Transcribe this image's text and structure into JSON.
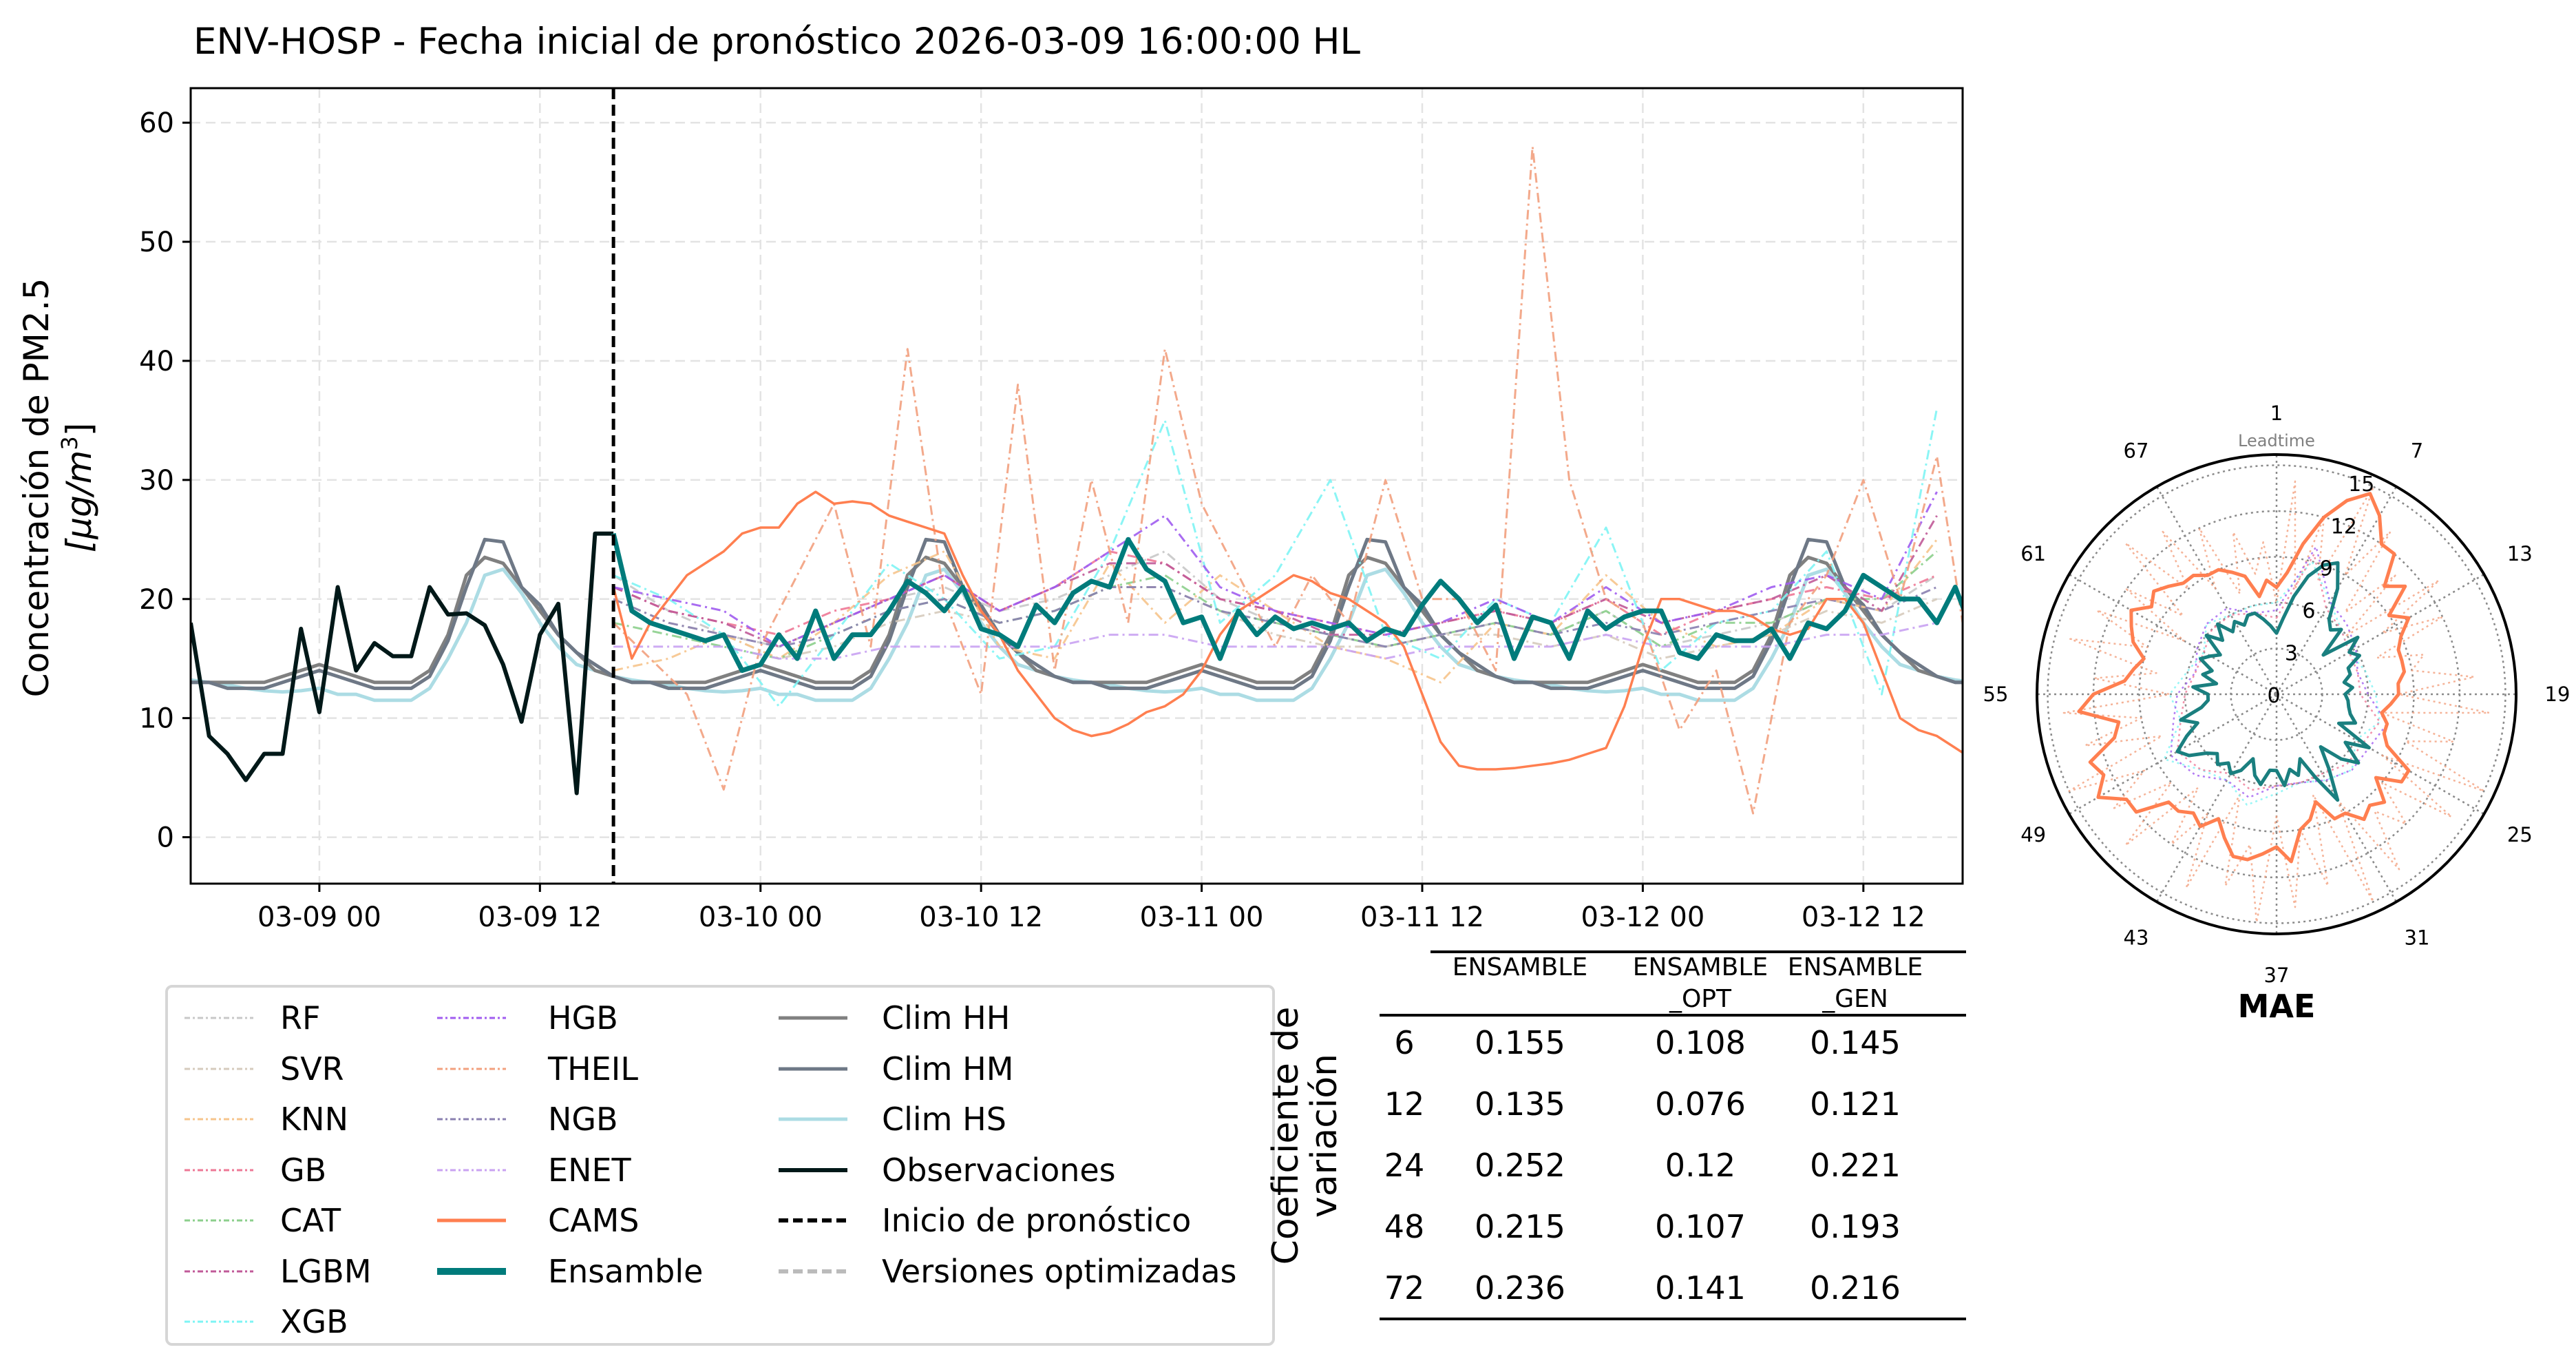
{
  "chart_data": [
    {
      "type": "line",
      "title": "ENV-HOSP - Fecha inicial de pronóstico 2026-03-09 16:00:00 HL",
      "ylabel_line1": "Concentración de PM2.5",
      "ylabel_unit_prefix": "[μg/m",
      "ylabel_unit_sup": "3",
      "ylabel_unit_suffix": "]",
      "x_unit": "hours since 03-09 00",
      "xlim": [
        -7,
        89.4
      ],
      "ylim": [
        -3.9,
        62.9
      ],
      "yticks": [
        0,
        10,
        20,
        30,
        40,
        50,
        60
      ],
      "xticks": [
        {
          "h": 0,
          "label": "03-09 00"
        },
        {
          "h": 12,
          "label": "03-09 12"
        },
        {
          "h": 24,
          "label": "03-10 00"
        },
        {
          "h": 36,
          "label": "03-10 12"
        },
        {
          "h": 48,
          "label": "03-11 00"
        },
        {
          "h": 60,
          "label": "03-11 12"
        },
        {
          "h": 72,
          "label": "03-12 00"
        },
        {
          "h": 84,
          "label": "03-12 12"
        }
      ],
      "grid": true,
      "forecast_start_h": 16,
      "climatology_profiles_by_hour": {
        "Clim HH": [
          14.5,
          14,
          13.5,
          13,
          13,
          13,
          14,
          17,
          22,
          23.5,
          23,
          21,
          19,
          17,
          15.5,
          14,
          13.5,
          13,
          13,
          13,
          13,
          13,
          13.5,
          14
        ],
        "Clim HM": [
          14,
          13.5,
          13,
          12.5,
          12.5,
          12.5,
          13.5,
          16.5,
          21,
          25,
          24.8,
          21,
          19.5,
          17,
          15.5,
          14.5,
          13.5,
          13,
          13,
          12.5,
          12.5,
          12.5,
          13,
          13.5
        ],
        "Clim HS": [
          12.5,
          12,
          12,
          11.5,
          11.5,
          11.5,
          12.5,
          15,
          18,
          22,
          22.5,
          20.5,
          18,
          16,
          14.5,
          14,
          13.5,
          13.2,
          13,
          12.8,
          12.5,
          12.3,
          12.2,
          12.3
        ]
      },
      "observations": {
        "start_h": -7,
        "step_h": 1,
        "values": [
          18,
          8.5,
          7,
          4.8,
          7,
          7,
          17.5,
          10.5,
          21,
          14,
          16.3,
          15.2,
          15.2,
          21,
          18.7,
          18.8,
          17.8,
          14.5,
          9.7,
          17,
          19.6,
          3.7,
          25.5,
          25.5
        ]
      },
      "ensemble": {
        "start_h": 16,
        "step_h": 1,
        "values": [
          25.5,
          19,
          18,
          17.5,
          17,
          16.5,
          17,
          14,
          14.5,
          17,
          15,
          19,
          15,
          17,
          17,
          19,
          21.5,
          20.5,
          19,
          21,
          17.5,
          17,
          16,
          19.5,
          18,
          20.5,
          21.5,
          21,
          25,
          22.5,
          21.5,
          18,
          18.5,
          15,
          19,
          17,
          18.5,
          17.5,
          18,
          17.5,
          18,
          16.5,
          17.5,
          17,
          19.5,
          21.5,
          20,
          18,
          19.5,
          15,
          18.5,
          18,
          15,
          19,
          17.5,
          18.5,
          19,
          19,
          15.5,
          15,
          17,
          16.5,
          16.5,
          17.5,
          15,
          18,
          17.5,
          19,
          22,
          21,
          20,
          20,
          18,
          21,
          17,
          16.5,
          21,
          23,
          23.5
        ]
      },
      "cams": {
        "start_h": 16,
        "step_h": 1,
        "values": [
          21,
          15,
          18,
          20,
          22,
          23,
          24,
          25.5,
          26,
          26,
          28,
          29,
          28,
          28.2,
          28,
          27,
          26.5,
          26,
          25.5,
          22,
          19,
          17,
          14,
          12,
          10,
          9,
          8.5,
          8.8,
          9.5,
          10.5,
          11,
          12,
          14,
          17,
          19,
          20,
          21,
          22,
          21.5,
          20.5,
          20,
          19,
          18,
          16,
          12,
          8,
          6,
          5.7,
          5.7,
          5.8,
          6,
          6.2,
          6.5,
          7,
          7.5,
          11,
          16,
          20,
          20,
          19.5,
          19,
          19,
          18.5,
          17.5,
          17,
          17.5,
          20,
          20,
          18,
          14,
          10,
          9,
          8.5,
          7.5,
          6.5,
          6,
          7
        ]
      },
      "models": [
        {
          "name": "RF",
          "color": "#c8c8c8",
          "start_h": 16,
          "step_h": 3,
          "values": [
            22,
            19,
            17,
            16,
            18,
            20,
            21,
            19,
            20,
            22,
            24,
            20,
            18,
            17,
            16,
            17,
            18,
            17,
            19,
            16,
            17,
            18,
            20,
            19,
            22
          ]
        },
        {
          "name": "SVR",
          "color": "#d6cbbd",
          "start_h": 16,
          "step_h": 3,
          "values": [
            20,
            18,
            17,
            15,
            16,
            18,
            19,
            18,
            19,
            21,
            21,
            19,
            17,
            16,
            16,
            17,
            17,
            16,
            17,
            15,
            16,
            17,
            19,
            18,
            20
          ]
        },
        {
          "name": "KNN",
          "color": "#f6c48c",
          "start_h": 16,
          "step_h": 3,
          "values": [
            14,
            15,
            17,
            15,
            18,
            22,
            24,
            16,
            15,
            23,
            18,
            22,
            19,
            16,
            15,
            13,
            18,
            17,
            22,
            18,
            16,
            17,
            20,
            19,
            25
          ]
        },
        {
          "name": "GB",
          "color": "#ee7896",
          "start_h": 16,
          "step_h": 3,
          "values": [
            21,
            19,
            18,
            17,
            19,
            20,
            22,
            19,
            21,
            24,
            23,
            20,
            19,
            18,
            17,
            18,
            19,
            18,
            20,
            17,
            19,
            20,
            21,
            20,
            22
          ]
        },
        {
          "name": "CAT",
          "color": "#8ccf8c",
          "start_h": 16,
          "step_h": 3,
          "values": [
            18,
            17,
            16,
            15,
            17,
            19,
            20,
            18,
            19,
            21,
            22,
            19,
            18,
            17,
            16,
            17,
            18,
            17,
            19,
            16,
            18,
            18,
            20,
            20,
            24
          ]
        },
        {
          "name": "LGBM",
          "color": "#c05a98",
          "start_h": 16,
          "step_h": 3,
          "values": [
            21,
            19,
            18,
            16,
            18,
            20,
            22,
            19,
            21,
            23,
            23,
            20,
            19,
            17,
            17,
            18,
            19,
            18,
            20,
            18,
            19,
            20,
            22,
            19,
            27
          ]
        },
        {
          "name": "XGB",
          "color": "#7ef4f4",
          "start_h": 16,
          "step_h": 3,
          "values": [
            22,
            20,
            17,
            11,
            17,
            23,
            20,
            15,
            16,
            24,
            35,
            18,
            22,
            30,
            17,
            15,
            20,
            18,
            26,
            14,
            18,
            19,
            24,
            12,
            36
          ]
        },
        {
          "name": "HGB",
          "color": "#a05cf0",
          "start_h": 16,
          "step_h": 3,
          "values": [
            21,
            20,
            19,
            16,
            18,
            20,
            22,
            19,
            21,
            24,
            27,
            21,
            19,
            18,
            17,
            18,
            20,
            18,
            21,
            18,
            19,
            21,
            22,
            20,
            29
          ]
        },
        {
          "name": "THEIL",
          "color": "#f2a07e",
          "start_h": 16,
          "step_h": 2,
          "values": [
            18,
            15,
            12,
            4,
            16,
            22,
            28,
            16,
            41,
            20,
            12,
            38,
            14,
            30,
            18,
            41,
            28,
            22,
            16,
            22,
            18,
            30,
            20,
            20,
            14,
            58,
            30,
            20,
            18,
            9,
            14,
            2,
            18,
            22,
            30,
            20,
            32,
            12,
            33
          ]
        },
        {
          "name": "NGB",
          "color": "#8a80b0",
          "start_h": 16,
          "step_h": 3,
          "values": [
            20,
            18,
            17,
            16,
            17,
            19,
            20,
            18,
            19,
            21,
            21,
            19,
            18,
            17,
            16,
            17,
            18,
            17,
            18,
            17,
            18,
            19,
            20,
            19,
            21
          ]
        },
        {
          "name": "ENET",
          "color": "#c9a2f2",
          "start_h": 16,
          "step_h": 3,
          "values": [
            16,
            16,
            16,
            15,
            15,
            16,
            16,
            16,
            16,
            17,
            17,
            16,
            16,
            16,
            15,
            16,
            16,
            16,
            17,
            16,
            16,
            16,
            17,
            17,
            18
          ]
        }
      ],
      "colors": {
        "Clim HH": "#808080",
        "Clim HM": "#6e7886",
        "Clim HS": "#acdce4",
        "Observaciones": "#001818",
        "CAMS": "#ff7f50",
        "Ensamble": "#007b7b",
        "Inicio": "#000000",
        "Versiones": "#bbbbbb"
      }
    },
    {
      "type": "polar-line",
      "title": "MAE",
      "angular_label": "Leadtime",
      "leadtimes": 72,
      "theta_ticks": [
        "1",
        "7",
        "13",
        "19",
        "25",
        "31",
        "37",
        "43",
        "49",
        "55",
        "61",
        "67"
      ],
      "r_ticks": [
        "0",
        "3",
        "6",
        "9",
        "12",
        "15"
      ],
      "rlim": [
        0,
        15.7
      ],
      "series": [
        {
          "name": "THEIL",
          "color": "#f2a07e",
          "step": 1,
          "values": [
            6,
            14,
            7,
            12,
            8,
            15,
            9,
            13,
            7,
            11,
            6,
            13,
            8,
            12,
            7,
            10,
            9,
            13,
            8,
            14,
            7,
            12,
            9,
            15,
            8,
            14,
            9,
            12,
            10,
            14,
            8,
            15,
            7,
            13,
            9,
            14,
            8,
            15,
            10,
            13,
            7,
            14,
            9,
            12,
            8,
            14,
            9,
            13,
            10,
            15,
            8,
            13,
            9,
            14,
            7,
            12,
            8,
            14,
            9,
            13,
            7,
            12,
            8,
            14,
            9,
            13,
            8,
            12,
            7,
            11,
            8,
            10
          ]
        },
        {
          "name": "XGB",
          "color": "#7ef4f4",
          "step": 3,
          "values": [
            6,
            9,
            7,
            6,
            5.5,
            6,
            6.5,
            7,
            6,
            7,
            6.5,
            6,
            6.5,
            7.5,
            6.5,
            7,
            8.5,
            6.5,
            7,
            6,
            5.5,
            6.5,
            6,
            6
          ]
        },
        {
          "name": "HGB",
          "color": "#a05cf0",
          "step": 3,
          "values": [
            5.5,
            10,
            7,
            6.5,
            6,
            5.5,
            6,
            7.5,
            7,
            7,
            6.5,
            6,
            6,
            7,
            6.5,
            7.5,
            8,
            7,
            6.5,
            5.5,
            6,
            6.5,
            6.5,
            5.5
          ]
        },
        {
          "name": "GB",
          "color": "#ee7896",
          "step": 3,
          "values": [
            5,
            9.5,
            6.5,
            6,
            5.5,
            5.5,
            5.5,
            7,
            6.5,
            6.5,
            6,
            6,
            6,
            6.5,
            6,
            7,
            7.5,
            6.5,
            6,
            5.5,
            5.5,
            6,
            6,
            5.5
          ]
        },
        {
          "name": "CAMS",
          "color": "#ff7f50",
          "step": 1,
          "values": [
            7,
            8,
            10,
            12,
            13.5,
            14.5,
            13.5,
            12,
            12,
            10,
            11,
            9,
            10,
            9,
            8.5,
            8.5,
            8.5,
            8,
            8,
            7.5,
            7,
            7.5,
            7.5,
            8,
            10,
            10,
            8.5,
            10,
            9.5,
            10,
            9,
            9,
            7.5,
            8.5,
            9,
            11,
            10,
            10.5,
            11,
            11,
            10,
            9,
            10,
            9.5,
            10,
            10,
            12,
            12,
            13.5,
            12.5,
            13,
            11,
            10.5,
            13,
            12,
            10,
            9.5,
            9,
            10,
            10.5,
            11,
            10,
            10.5,
            10,
            9.5,
            9.5,
            9,
            9,
            8.5,
            8,
            6.5,
            7.5
          ]
        },
        {
          "name": "Ensamble",
          "color": "#1a7f7f",
          "step": 1,
          "values": [
            4,
            5,
            6.5,
            8,
            9,
            9.5,
            8,
            6,
            5.5,
            6,
            4,
            6.5,
            5.5,
            6,
            5,
            5,
            4.5,
            5,
            4.5,
            4.7,
            4.8,
            5,
            5.5,
            4.5,
            7,
            5.5,
            7,
            6,
            4.5,
            6,
            8,
            6,
            4.5,
            5.5,
            5,
            6,
            5,
            5,
            6,
            5.5,
            4.5,
            5.5,
            6,
            5.5,
            6,
            5.5,
            6,
            7,
            7.5,
            6.5,
            5.5,
            6.5,
            5,
            4.5,
            4.5,
            5.5,
            4,
            5,
            4.5,
            5.5,
            5,
            4.5,
            6,
            5,
            6,
            5,
            5.5,
            5,
            5.5,
            5.5,
            5,
            4.5
          ]
        }
      ]
    }
  ],
  "legend": {
    "columns": [
      [
        "RF",
        "SVR",
        "KNN",
        "GB",
        "CAT",
        "LGBM",
        "XGB"
      ],
      [
        "HGB",
        "THEIL",
        "NGB",
        "ENET",
        "CAMS",
        "Ensamble"
      ],
      [
        "Clim HH",
        "Clim HM",
        "Clim HS",
        "Observaciones",
        "Inicio de pronóstico",
        "Versiones optimizadas"
      ]
    ]
  },
  "table": {
    "side_label_line1": "Coeficiente de",
    "side_label_line2": "variación",
    "headers": [
      [
        "ENSAMBLE",
        ""
      ],
      [
        "ENSAMBLE",
        "_OPT"
      ],
      [
        "ENSAMBLE",
        "_GEN"
      ]
    ],
    "rows": [
      [
        "6",
        "0.155",
        "0.108",
        "0.145"
      ],
      [
        "12",
        "0.135",
        "0.076",
        "0.121"
      ],
      [
        "24",
        "0.252",
        "0.12",
        "0.221"
      ],
      [
        "48",
        "0.215",
        "0.107",
        "0.193"
      ],
      [
        "72",
        "0.236",
        "0.141",
        "0.216"
      ]
    ]
  }
}
